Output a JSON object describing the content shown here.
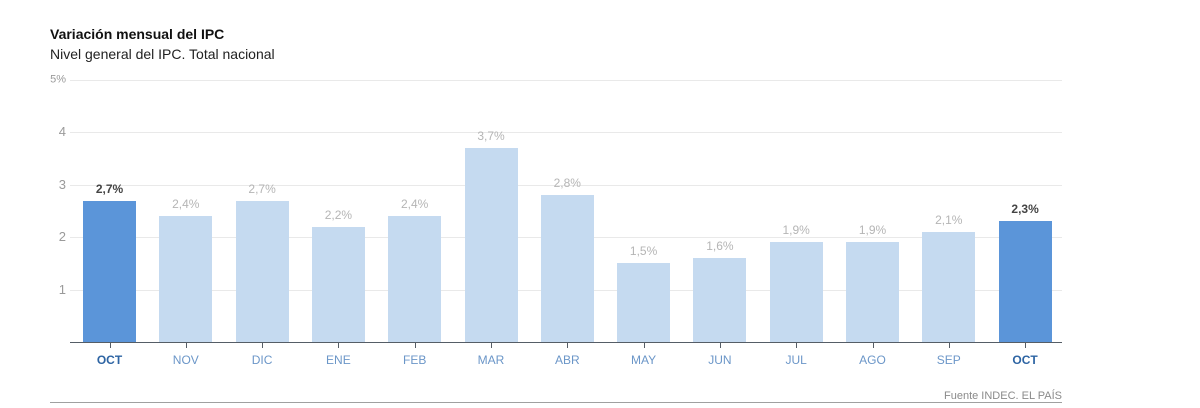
{
  "header": {
    "title": "Variación mensual del IPC",
    "subtitle": "Nivel general del IPC. Total nacional"
  },
  "footer": {
    "source": "Fuente INDEC. EL PAÍS"
  },
  "colors": {
    "highlight_bar": "#5b95d9",
    "regular_bar": "#c5daf0",
    "highlight_label": "#2d64a3",
    "regular_label": "#6b96c8"
  },
  "yaxis": {
    "ticks": [
      "1",
      "2",
      "3",
      "4",
      "5%"
    ]
  },
  "bars": [
    {
      "month": "OCT",
      "value": 2.7,
      "label": "2,7%",
      "highlight": true
    },
    {
      "month": "NOV",
      "value": 2.4,
      "label": "2,4%",
      "highlight": false
    },
    {
      "month": "DIC",
      "value": 2.7,
      "label": "2,7%",
      "highlight": false
    },
    {
      "month": "ENE",
      "value": 2.2,
      "label": "2,2%",
      "highlight": false
    },
    {
      "month": "FEB",
      "value": 2.4,
      "label": "2,4%",
      "highlight": false
    },
    {
      "month": "MAR",
      "value": 3.7,
      "label": "3,7%",
      "highlight": false
    },
    {
      "month": "ABR",
      "value": 2.8,
      "label": "2,8%",
      "highlight": false
    },
    {
      "month": "MAY",
      "value": 1.5,
      "label": "1,5%",
      "highlight": false
    },
    {
      "month": "JUN",
      "value": 1.6,
      "label": "1,6%",
      "highlight": false
    },
    {
      "month": "JUL",
      "value": 1.9,
      "label": "1,9%",
      "highlight": false
    },
    {
      "month": "AGO",
      "value": 1.9,
      "label": "1,9%",
      "highlight": false
    },
    {
      "month": "SEP",
      "value": 2.1,
      "label": "2,1%",
      "highlight": false
    },
    {
      "month": "OCT",
      "value": 2.3,
      "label": "2,3%",
      "highlight": true
    }
  ],
  "chart_data": {
    "type": "bar",
    "title": "Variación mensual del IPC",
    "subtitle": "Nivel general del IPC. Total nacional",
    "categories": [
      "OCT",
      "NOV",
      "DIC",
      "ENE",
      "FEB",
      "MAR",
      "ABR",
      "MAY",
      "JUN",
      "JUL",
      "AGO",
      "SEP",
      "OCT"
    ],
    "values": [
      2.7,
      2.4,
      2.7,
      2.2,
      2.4,
      3.7,
      2.8,
      1.5,
      1.6,
      1.9,
      1.9,
      2.1,
      2.3
    ],
    "data_labels": [
      "2,7%",
      "2,4%",
      "2,7%",
      "2,2%",
      "2,4%",
      "3,7%",
      "2,8%",
      "1,5%",
      "1,6%",
      "1,9%",
      "1,9%",
      "2,1%",
      "2,3%"
    ],
    "highlighted_indices": [
      0,
      12
    ],
    "xlabel": "",
    "ylabel": "",
    "ylim": [
      0,
      5
    ],
    "yticks": [
      1,
      2,
      3,
      4,
      5
    ],
    "ytick_labels": [
      "1",
      "2",
      "3",
      "4",
      "5%"
    ],
    "grid": true,
    "legend": null,
    "source": "Fuente INDEC. EL PAÍS"
  }
}
